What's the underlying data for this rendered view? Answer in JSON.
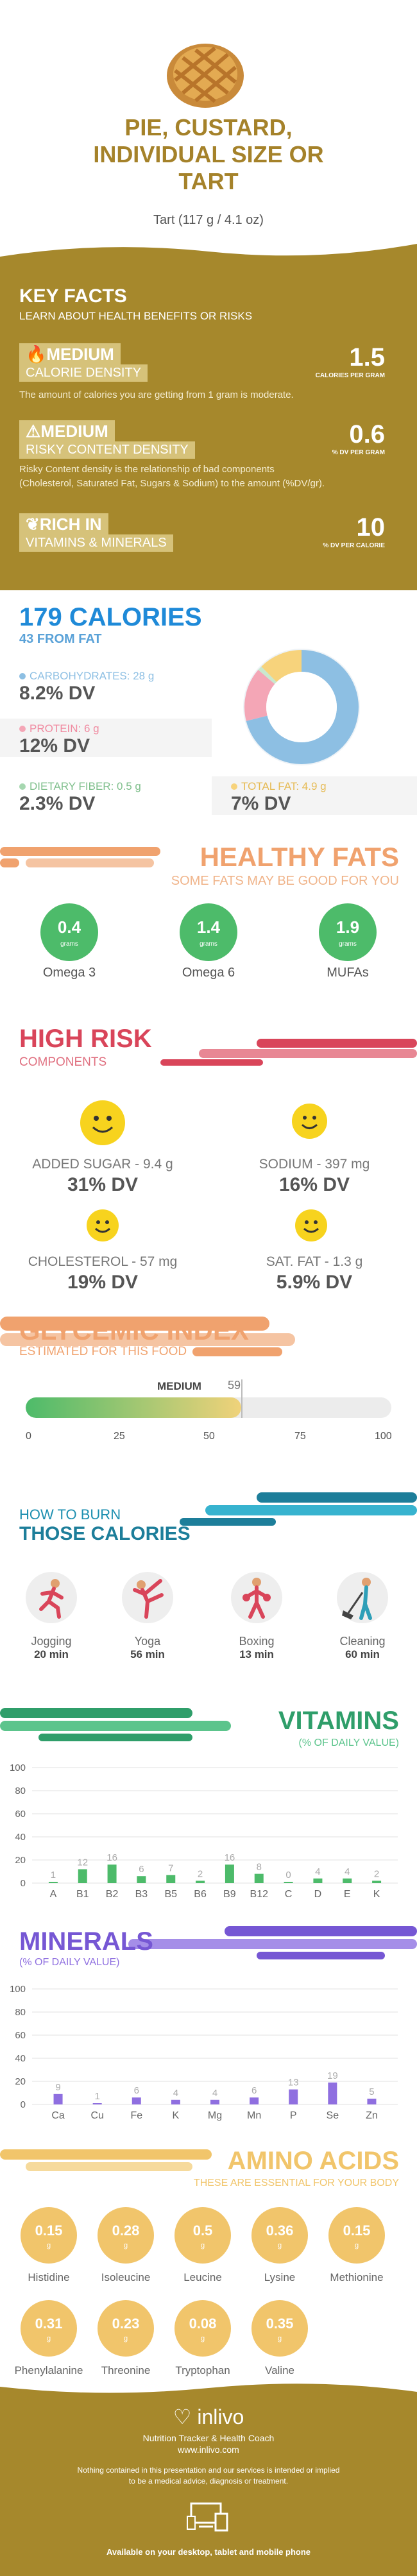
{
  "header": {
    "title_lines": [
      "PIE, CUSTARD,",
      "INDIVIDUAL SIZE OR",
      "TART"
    ],
    "serving": "Tart (117 g / 4.1 oz)",
    "image_icon": "pie-icon"
  },
  "key_facts": {
    "title": "KEY FACTS",
    "subtitle": "LEARN ABOUT HEALTH BENEFITS OR RISKS",
    "items": [
      {
        "icon": "flame-icon",
        "level": "MEDIUM",
        "name": "CALORIE DENSITY",
        "value": "1.5",
        "unit": "CALORIES PER GRAM",
        "desc": [
          "The amount of calories you are getting from 1 gram is moderate."
        ]
      },
      {
        "icon": "warning-icon",
        "level": "MEDIUM",
        "name": "RISKY CONTENT DENSITY",
        "value": "0.6",
        "unit": "% DV PER GRAM",
        "desc": [
          "Risky Content density is the relationship of bad components",
          "(Cholesterol, Saturated Fat, Sugars & Sodium) to the amount (%DV/gr)."
        ]
      },
      {
        "icon": "leaf-icon",
        "level": "RICH  IN",
        "name": "VITAMINS & MINERALS",
        "value": "10",
        "unit": "% DV PER CALORIE",
        "desc": []
      }
    ]
  },
  "calories": {
    "title": "179 CALORIES",
    "subtitle": "43 FROM FAT",
    "nutrients": [
      {
        "label": "CARBOHYDRATES: 28 g",
        "dv": "8.2% DV",
        "color": "#8dbfe3"
      },
      {
        "label": "PROTEIN: 6 g",
        "dv": "12% DV",
        "color": "#f4a6b6"
      },
      {
        "label": "DIETARY FIBER: 0.5 g",
        "dv": "2.3% DV",
        "color": "#a6d7b0"
      },
      {
        "label": "TOTAL FAT: 4.9 g",
        "dv": "7% DV",
        "color": "#f7d37c"
      }
    ],
    "donut": [
      {
        "name": "carbohydrates",
        "value": 28,
        "color": "#8dbfe3"
      },
      {
        "name": "protein",
        "value": 6,
        "color": "#f4a6b6"
      },
      {
        "name": "fiber",
        "value": 0.5,
        "color": "#c9e8cf"
      },
      {
        "name": "fat",
        "value": 4.9,
        "color": "#f7d37c"
      }
    ]
  },
  "healthy_fats": {
    "title": "HEALTHY FATS",
    "subtitle": "SOME FATS MAY BE GOOD FOR YOU",
    "items": [
      {
        "value": "0.4",
        "unit": "grams",
        "name": "Omega 3"
      },
      {
        "value": "1.4",
        "unit": "grams",
        "name": "Omega 6"
      },
      {
        "value": "1.9",
        "unit": "grams",
        "name": "MUFAs"
      }
    ]
  },
  "high_risk": {
    "title": "HIGH RISK",
    "subtitle": "COMPONENTS",
    "items": [
      {
        "label": "ADDED SUGAR - 9.4 g",
        "dv": "31% DV"
      },
      {
        "label": "SODIUM - 397 mg",
        "dv": "16% DV"
      },
      {
        "label": "CHOLESTEROL - 57 mg",
        "dv": "19% DV"
      },
      {
        "label": "SAT. FAT - 1.3 g",
        "dv": "5.9% DV"
      }
    ]
  },
  "glycemic": {
    "title": "GLYCEMIC INDEX",
    "subtitle": "ESTIMATED FOR THIS FOOD",
    "level": "MEDIUM",
    "value": 59,
    "value_label": "59",
    "ticks": [
      "0",
      "25",
      "50",
      "75",
      "100"
    ]
  },
  "burn": {
    "title1": "HOW TO BURN",
    "title2": "THOSE CALORIES",
    "items": [
      {
        "icon": "jogging-icon",
        "name": "Jogging",
        "time": "20 min"
      },
      {
        "icon": "yoga-icon",
        "name": "Yoga",
        "time": "56 min"
      },
      {
        "icon": "boxing-icon",
        "name": "Boxing",
        "time": "13 min"
      },
      {
        "icon": "cleaning-icon",
        "name": "Cleaning",
        "time": "60 min"
      }
    ]
  },
  "vitamins_header": {
    "title": "VITAMINS",
    "subtitle": "(% OF DAILY VALUE)"
  },
  "minerals_header": {
    "title": "MINERALS",
    "subtitle": "(% OF DAILY VALUE)"
  },
  "chart_data": [
    {
      "type": "bar",
      "title": "VITAMINS",
      "categories": [
        "A",
        "B1",
        "B2",
        "B3",
        "B5",
        "B6",
        "B9",
        "B12",
        "C",
        "D",
        "E",
        "K"
      ],
      "values": [
        1,
        12,
        16,
        6,
        7,
        2,
        16,
        8,
        0,
        4,
        4,
        2
      ],
      "ylim": [
        0,
        100
      ],
      "yticks": [
        0,
        20,
        40,
        60,
        80,
        100
      ],
      "color": "#4dbb6a",
      "grid": true
    },
    {
      "type": "bar",
      "title": "MINERALS",
      "categories": [
        "Ca",
        "Cu",
        "Fe",
        "K",
        "Mg",
        "Mn",
        "P",
        "Se",
        "Zn"
      ],
      "values": [
        9,
        1,
        6,
        4,
        4,
        6,
        13,
        19,
        5
      ],
      "ylim": [
        0,
        100
      ],
      "yticks": [
        0,
        20,
        40,
        60,
        80,
        100
      ],
      "color": "#8f6fe0",
      "grid": true
    }
  ],
  "amino": {
    "title": "AMINO ACIDS",
    "subtitle": "THESE ARE ESSENTIAL FOR YOUR BODY",
    "unit": "g",
    "items": [
      {
        "value": "0.15",
        "name": "Histidine"
      },
      {
        "value": "0.28",
        "name": "Isoleucine"
      },
      {
        "value": "0.5",
        "name": "Leucine"
      },
      {
        "value": "0.36",
        "name": "Lysine"
      },
      {
        "value": "0.15",
        "name": "Methionine"
      },
      {
        "value": "0.31",
        "name": "Phenylalanine"
      },
      {
        "value": "0.23",
        "name": "Threonine"
      },
      {
        "value": "0.08",
        "name": "Tryptophan"
      },
      {
        "value": "0.35",
        "name": "Valine"
      }
    ]
  },
  "footer": {
    "brand": "inlivo",
    "tagline": "Nutrition Tracker & Health Coach",
    "url": "www.inlivo.com",
    "disclaimer": [
      "Nothing contained in this presentation and our services is intended or implied",
      "to be a medical advice, diagnosis or treatment."
    ],
    "available": "Available on your desktop, tablet and mobile phone",
    "icons": [
      "heart-icon",
      "devices-icon"
    ]
  }
}
